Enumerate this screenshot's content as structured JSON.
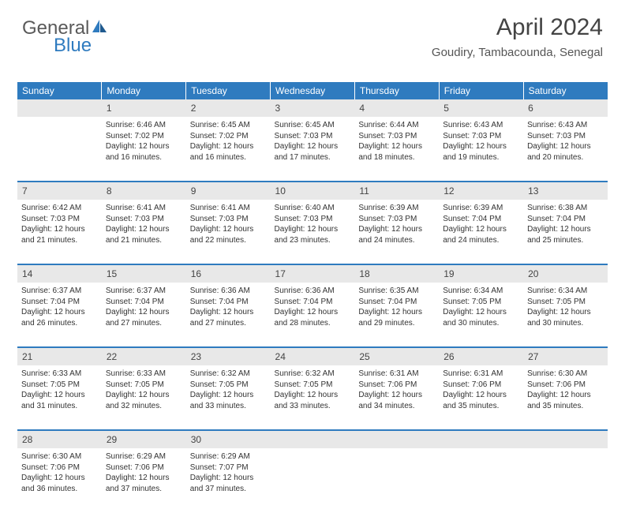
{
  "logo": {
    "part1": "General",
    "part2": "Blue"
  },
  "title": "April 2024",
  "location": "Goudiry, Tambacounda, Senegal",
  "colors": {
    "header_bg": "#2f7bbf",
    "header_fg": "#ffffff",
    "daynum_bg": "#e8e8e8",
    "row_divider": "#2f7bbf",
    "text": "#333333",
    "logo_gray": "#5a5a5a",
    "logo_blue": "#2f7bbf",
    "title_color": "#444444"
  },
  "weekdays": [
    "Sunday",
    "Monday",
    "Tuesday",
    "Wednesday",
    "Thursday",
    "Friday",
    "Saturday"
  ],
  "weeks": [
    {
      "nums": [
        "",
        "1",
        "2",
        "3",
        "4",
        "5",
        "6"
      ],
      "cells": [
        "",
        "Sunrise: 6:46 AM\nSunset: 7:02 PM\nDaylight: 12 hours and 16 minutes.",
        "Sunrise: 6:45 AM\nSunset: 7:02 PM\nDaylight: 12 hours and 16 minutes.",
        "Sunrise: 6:45 AM\nSunset: 7:03 PM\nDaylight: 12 hours and 17 minutes.",
        "Sunrise: 6:44 AM\nSunset: 7:03 PM\nDaylight: 12 hours and 18 minutes.",
        "Sunrise: 6:43 AM\nSunset: 7:03 PM\nDaylight: 12 hours and 19 minutes.",
        "Sunrise: 6:43 AM\nSunset: 7:03 PM\nDaylight: 12 hours and 20 minutes."
      ]
    },
    {
      "nums": [
        "7",
        "8",
        "9",
        "10",
        "11",
        "12",
        "13"
      ],
      "cells": [
        "Sunrise: 6:42 AM\nSunset: 7:03 PM\nDaylight: 12 hours and 21 minutes.",
        "Sunrise: 6:41 AM\nSunset: 7:03 PM\nDaylight: 12 hours and 21 minutes.",
        "Sunrise: 6:41 AM\nSunset: 7:03 PM\nDaylight: 12 hours and 22 minutes.",
        "Sunrise: 6:40 AM\nSunset: 7:03 PM\nDaylight: 12 hours and 23 minutes.",
        "Sunrise: 6:39 AM\nSunset: 7:03 PM\nDaylight: 12 hours and 24 minutes.",
        "Sunrise: 6:39 AM\nSunset: 7:04 PM\nDaylight: 12 hours and 24 minutes.",
        "Sunrise: 6:38 AM\nSunset: 7:04 PM\nDaylight: 12 hours and 25 minutes."
      ]
    },
    {
      "nums": [
        "14",
        "15",
        "16",
        "17",
        "18",
        "19",
        "20"
      ],
      "cells": [
        "Sunrise: 6:37 AM\nSunset: 7:04 PM\nDaylight: 12 hours and 26 minutes.",
        "Sunrise: 6:37 AM\nSunset: 7:04 PM\nDaylight: 12 hours and 27 minutes.",
        "Sunrise: 6:36 AM\nSunset: 7:04 PM\nDaylight: 12 hours and 27 minutes.",
        "Sunrise: 6:36 AM\nSunset: 7:04 PM\nDaylight: 12 hours and 28 minutes.",
        "Sunrise: 6:35 AM\nSunset: 7:04 PM\nDaylight: 12 hours and 29 minutes.",
        "Sunrise: 6:34 AM\nSunset: 7:05 PM\nDaylight: 12 hours and 30 minutes.",
        "Sunrise: 6:34 AM\nSunset: 7:05 PM\nDaylight: 12 hours and 30 minutes."
      ]
    },
    {
      "nums": [
        "21",
        "22",
        "23",
        "24",
        "25",
        "26",
        "27"
      ],
      "cells": [
        "Sunrise: 6:33 AM\nSunset: 7:05 PM\nDaylight: 12 hours and 31 minutes.",
        "Sunrise: 6:33 AM\nSunset: 7:05 PM\nDaylight: 12 hours and 32 minutes.",
        "Sunrise: 6:32 AM\nSunset: 7:05 PM\nDaylight: 12 hours and 33 minutes.",
        "Sunrise: 6:32 AM\nSunset: 7:05 PM\nDaylight: 12 hours and 33 minutes.",
        "Sunrise: 6:31 AM\nSunset: 7:06 PM\nDaylight: 12 hours and 34 minutes.",
        "Sunrise: 6:31 AM\nSunset: 7:06 PM\nDaylight: 12 hours and 35 minutes.",
        "Sunrise: 6:30 AM\nSunset: 7:06 PM\nDaylight: 12 hours and 35 minutes."
      ]
    },
    {
      "nums": [
        "28",
        "29",
        "30",
        "",
        "",
        "",
        ""
      ],
      "cells": [
        "Sunrise: 6:30 AM\nSunset: 7:06 PM\nDaylight: 12 hours and 36 minutes.",
        "Sunrise: 6:29 AM\nSunset: 7:06 PM\nDaylight: 12 hours and 37 minutes.",
        "Sunrise: 6:29 AM\nSunset: 7:07 PM\nDaylight: 12 hours and 37 minutes.",
        "",
        "",
        "",
        ""
      ]
    }
  ]
}
